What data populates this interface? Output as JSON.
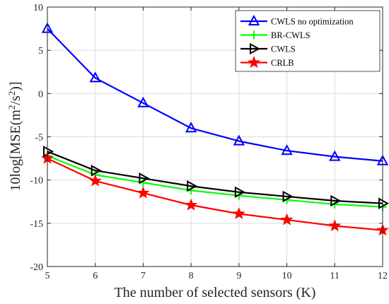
{
  "chart_data": {
    "type": "line",
    "title": "",
    "xlabel": "The number of selected sensors (K)",
    "ylabel_prefix": "10log[MSE(m",
    "ylabel_sup1": "2",
    "ylabel_mid": "/s",
    "ylabel_sup2": "2",
    "ylabel_suffix": ")]",
    "xlim": [
      5,
      12
    ],
    "ylim": [
      -20,
      10
    ],
    "x": [
      5,
      6,
      7,
      8,
      9,
      10,
      11,
      12
    ],
    "xticks": [
      "5",
      "6",
      "7",
      "8",
      "9",
      "10",
      "11",
      "12"
    ],
    "yticks": [
      "-20",
      "-15",
      "-10",
      "-5",
      "0",
      "5",
      "10"
    ],
    "grid": true,
    "legend_position": "top-right",
    "series": [
      {
        "name": "CWLS no optimization",
        "color": "#0000ff",
        "marker": "triangle-up",
        "values": [
          7.5,
          1.8,
          -1.1,
          -4.0,
          -5.5,
          -6.6,
          -7.3,
          -7.8
        ]
      },
      {
        "name": "BR-CWLS",
        "color": "#00ff00",
        "marker": "plus",
        "values": [
          -7.2,
          -9.4,
          -10.3,
          -11.2,
          -11.8,
          -12.3,
          -12.8,
          -13.1
        ]
      },
      {
        "name": "CWLS",
        "color": "#000000",
        "marker": "triangle-right",
        "values": [
          -6.7,
          -8.9,
          -9.8,
          -10.7,
          -11.4,
          -11.9,
          -12.4,
          -12.7
        ]
      },
      {
        "name": "CRLB",
        "color": "#ff0000",
        "marker": "star",
        "values": [
          -7.5,
          -10.1,
          -11.5,
          -12.9,
          -13.9,
          -14.6,
          -15.3,
          -15.8
        ]
      }
    ]
  }
}
